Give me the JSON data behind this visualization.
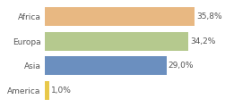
{
  "categories": [
    "Africa",
    "Europa",
    "Asia",
    "America"
  ],
  "values": [
    35.8,
    34.2,
    29.0,
    1.0
  ],
  "labels": [
    "35,8%",
    "34,2%",
    "29,0%",
    "1,0%"
  ],
  "bar_colors": [
    "#e8b882",
    "#b5c98e",
    "#6b8fbf",
    "#e8c84a"
  ],
  "background_color": "#ffffff",
  "xlim": [
    0,
    42
  ],
  "label_fontsize": 6.5,
  "tick_fontsize": 6.5
}
